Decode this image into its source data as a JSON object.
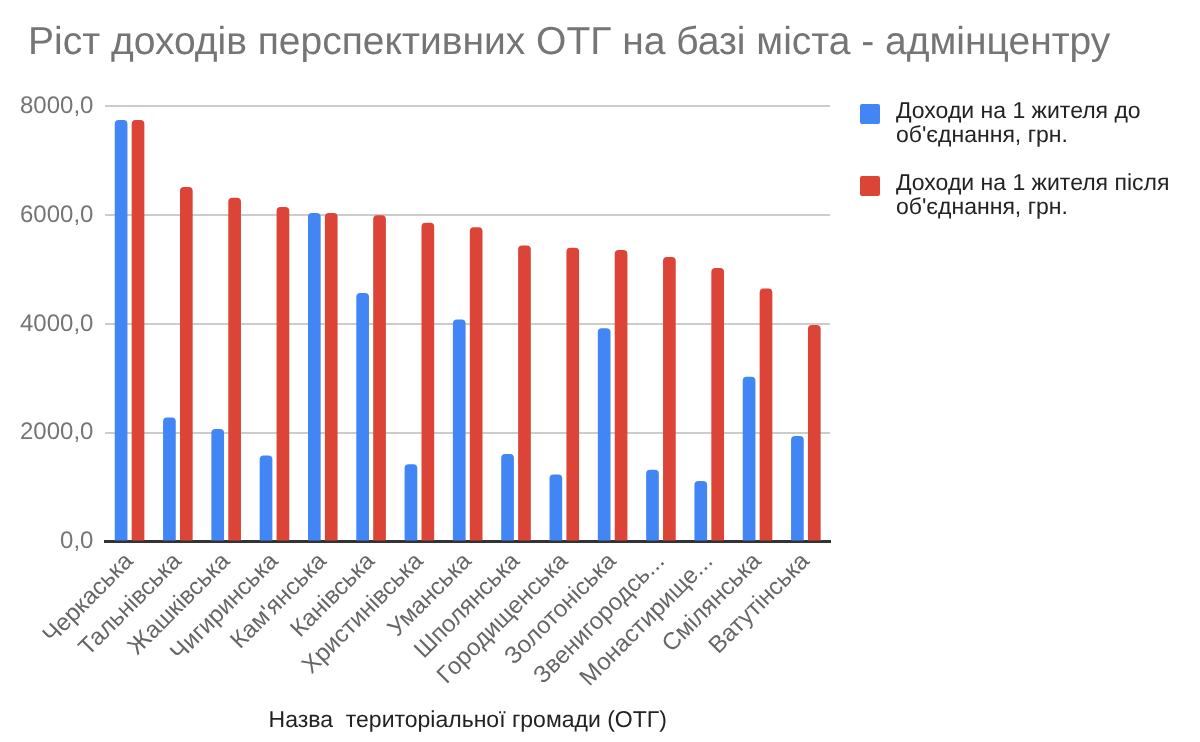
{
  "chart_data": {
    "type": "bar",
    "title": "Ріст доходів перспективних ОТГ на базі міста - адмінцентру",
    "xlabel": "Назва  територіальної громади (ОТГ)",
    "categories": [
      "Черкаська",
      "Тальнівська",
      "Жашківська",
      "Чигиринська",
      "Кам'янська",
      "Канівська",
      "Христинівська",
      "Уманська",
      "Шполянська",
      "Городищенська",
      "Золотоніська",
      "Звенигородсь...",
      "Монастирище...",
      "Смілянська",
      "Ватутінська"
    ],
    "series": [
      {
        "name": "Доходи на 1 жителя до об'єднання, грн.",
        "color": "#4285f4",
        "values": [
          7750,
          2280,
          2070,
          1580,
          6040,
          4570,
          1420,
          4080,
          1610,
          1230,
          3920,
          1320,
          1110,
          3030,
          1940
        ]
      },
      {
        "name": "Доходи на 1 жителя після об'єднання, грн.",
        "color": "#db4437",
        "values": [
          7750,
          6520,
          6320,
          6150,
          6040,
          6000,
          5860,
          5780,
          5440,
          5400,
          5360,
          5230,
          5030,
          4650,
          3980
        ]
      }
    ],
    "ylim": [
      0,
      8000
    ],
    "yticks": [
      {
        "value": 0,
        "label": "0,0"
      },
      {
        "value": 2000,
        "label": "2000,0"
      },
      {
        "value": 4000,
        "label": "4000,0"
      },
      {
        "value": 6000,
        "label": "6000,0"
      },
      {
        "value": 8000,
        "label": "8000,0"
      }
    ],
    "grid": "y",
    "legend": "right"
  }
}
